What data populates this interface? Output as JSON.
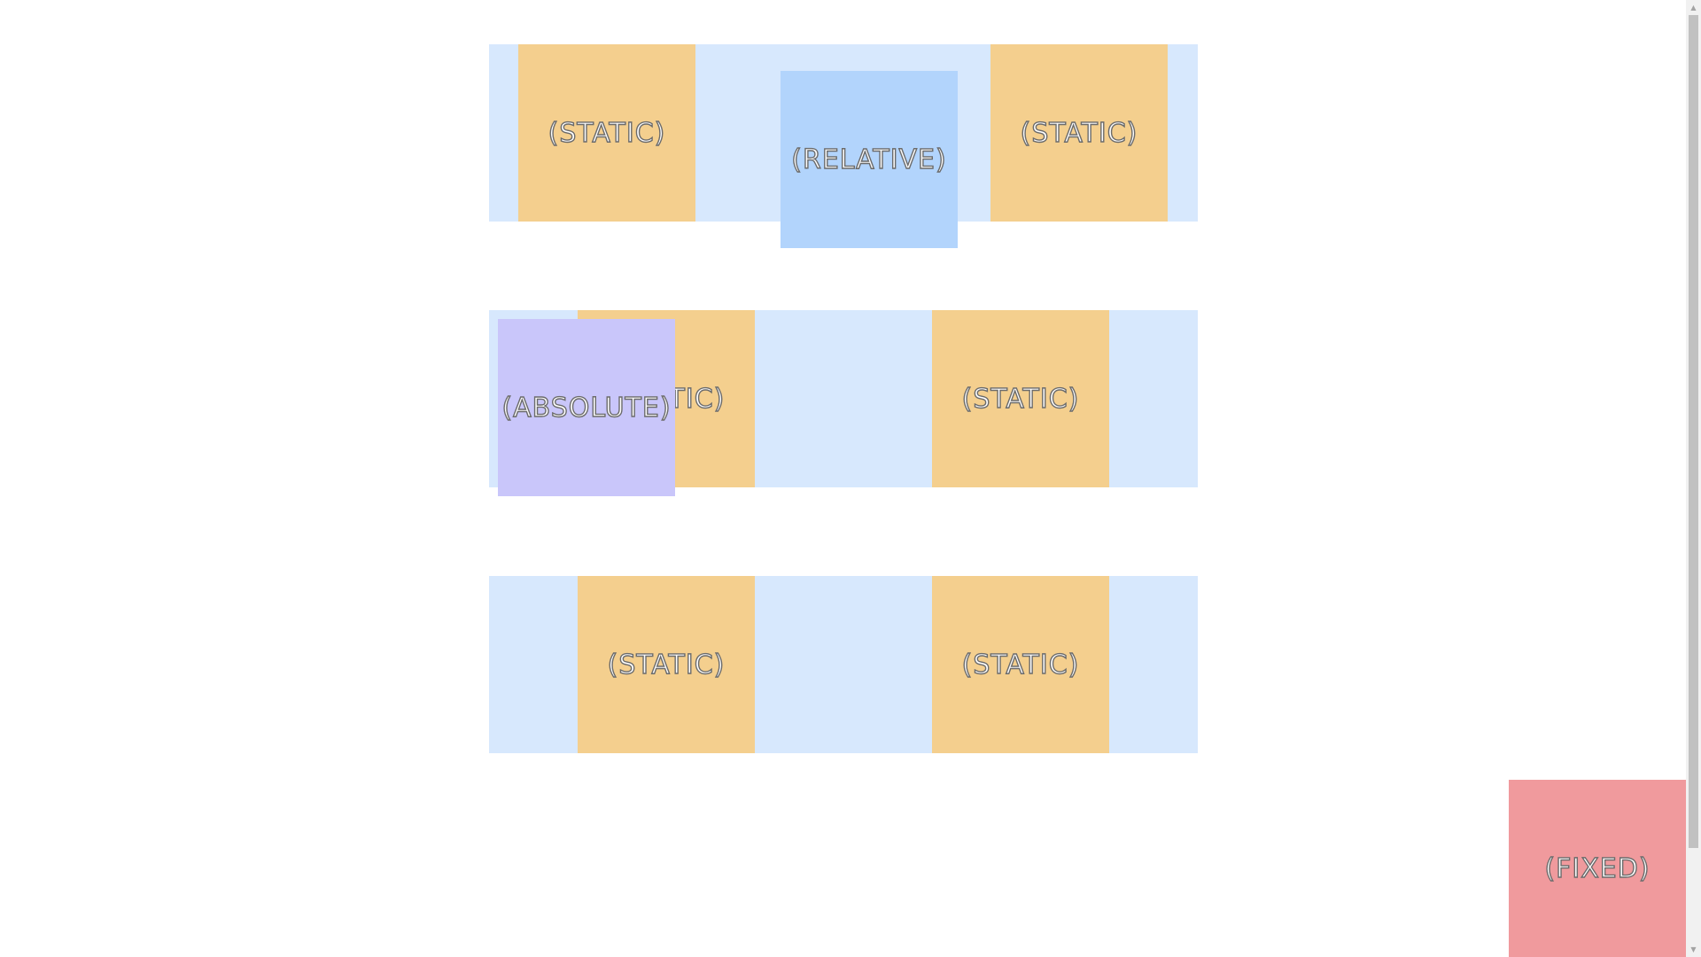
{
  "rows": [
    {
      "boxes": [
        {
          "label": "(STATIC)"
        },
        {
          "label": "(RELATIVE)"
        },
        {
          "label": "(STATIC)"
        }
      ]
    },
    {
      "boxes": [
        {
          "label": "(STATIC)"
        },
        {
          "label": "(ABSOLUTE)"
        },
        {
          "label": "(STATIC)"
        }
      ]
    },
    {
      "boxes": [
        {
          "label": "(STATIC)"
        },
        {
          "label": "(STATIC)"
        }
      ]
    }
  ],
  "fixed": {
    "label": "(FIXED)"
  },
  "scrollbar": {
    "up_icon": "▲",
    "down_icon": "▼"
  },
  "colors": {
    "row_background": "#d7e8fd",
    "static": "#f4cf8e",
    "relative": "#b2d4fc",
    "absolute": "#c9c6fa",
    "fixed": "#f09a9d"
  }
}
